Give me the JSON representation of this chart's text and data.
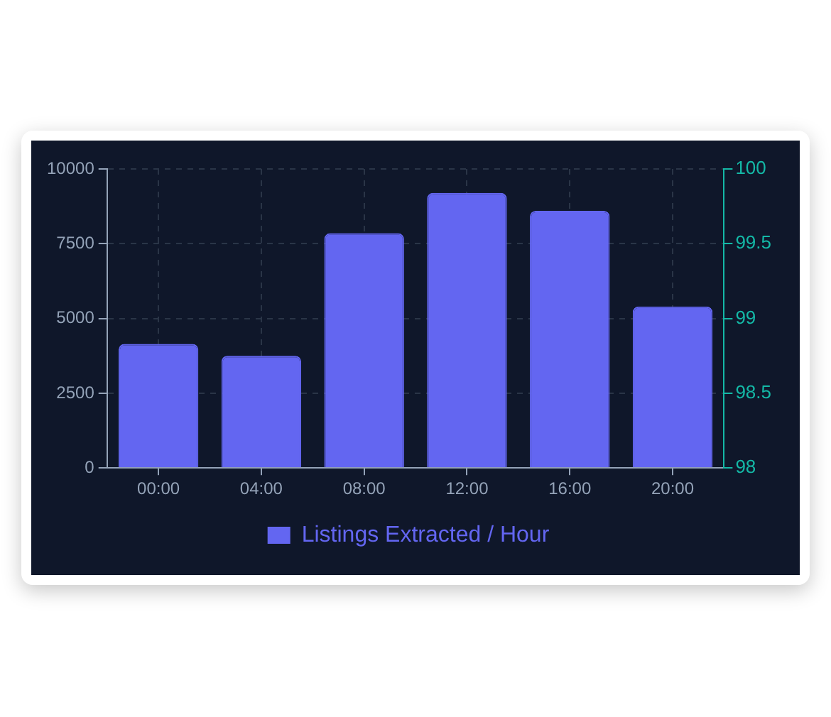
{
  "chart_data": {
    "type": "bar",
    "categories": [
      "00:00",
      "04:00",
      "08:00",
      "12:00",
      "16:00",
      "20:00"
    ],
    "series": [
      {
        "name": "Listings Extracted / Hour",
        "color": "#6366f1",
        "values": [
          4150,
          3750,
          7850,
          9200,
          8600,
          5400
        ]
      }
    ],
    "ylim": [
      0,
      10000
    ],
    "yticks": [
      0,
      2500,
      5000,
      7500,
      10000
    ],
    "y2lim": [
      98,
      100
    ],
    "y2ticks": [
      98,
      98.5,
      99,
      99.5,
      100
    ],
    "grid": true,
    "legend": "bottom"
  }
}
